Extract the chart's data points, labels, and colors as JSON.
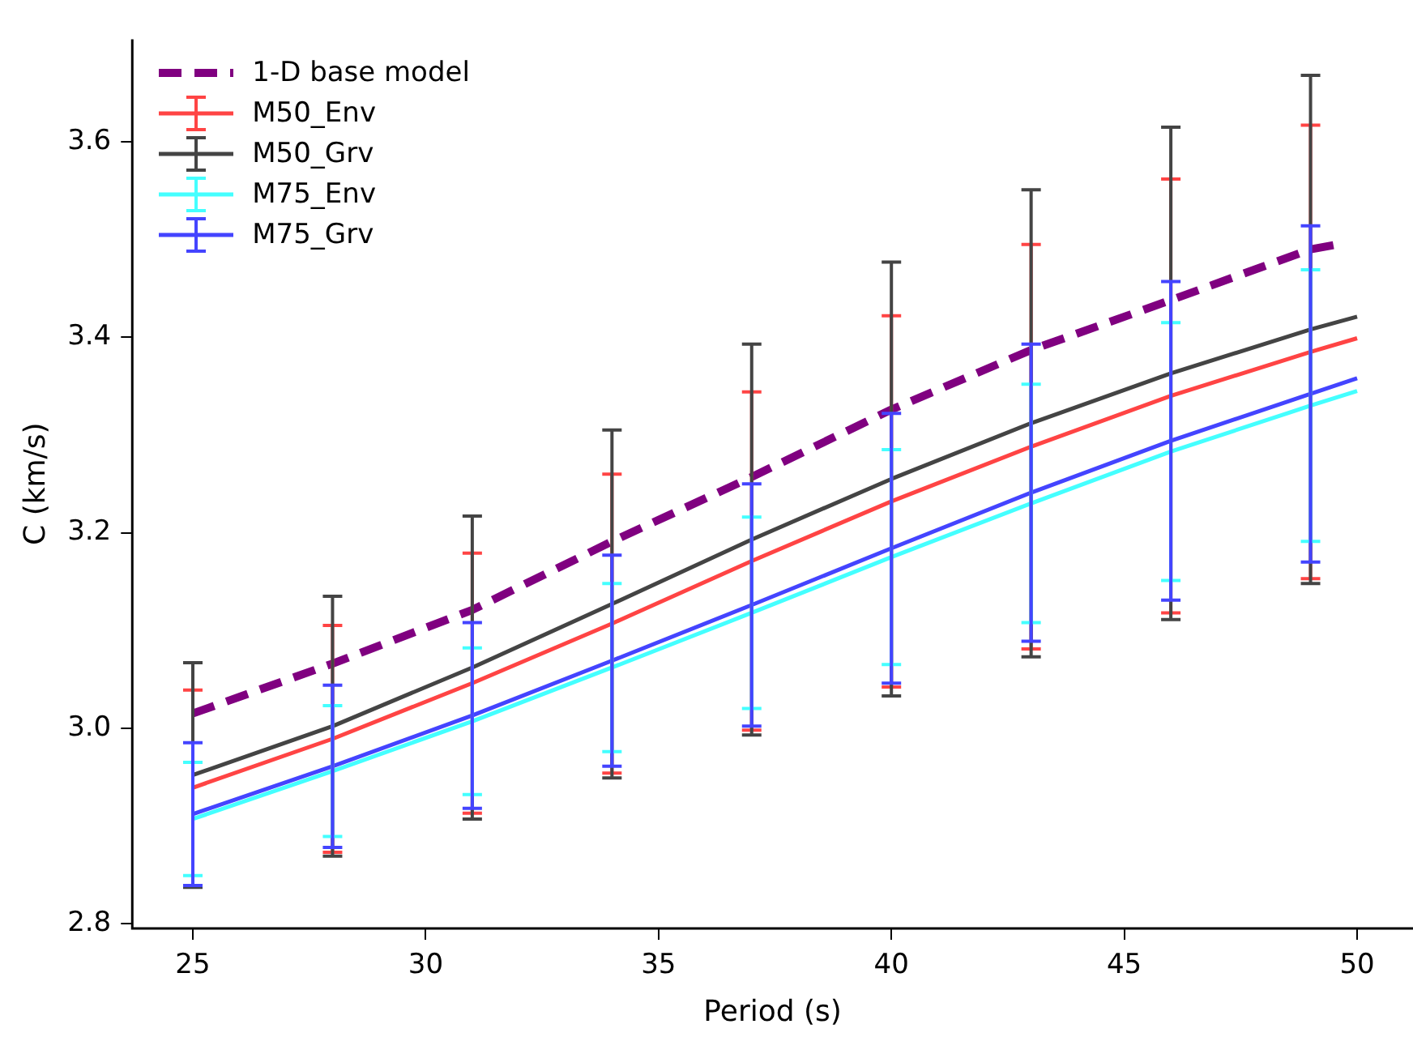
{
  "chart_data": {
    "type": "line",
    "xlabel": "Period (s)",
    "ylabel": "C (km/s)",
    "xlim": [
      23.7,
      51.2
    ],
    "xticks": [
      25,
      30,
      35,
      40,
      45,
      50
    ],
    "ylim": [
      2.795,
      3.705
    ],
    "yticks": [
      2.8,
      {
        "value": 3.0,
        "label": "3.0"
      },
      3.2,
      3.4,
      3.6
    ],
    "grid": false,
    "legend": "top left",
    "marker": "none",
    "series": [
      {
        "name": "1-D base model",
        "color": "#800080",
        "line_style": "dashed",
        "x": [
          25,
          28,
          31,
          34,
          37,
          40,
          43,
          46,
          49,
          49.7
        ],
        "values": [
          3.015,
          3.066,
          3.121,
          3.191,
          3.257,
          3.326,
          3.387,
          3.438,
          3.49,
          3.496
        ]
      },
      {
        "name": "M50_Env",
        "color": "#ff4444",
        "x": [
          25,
          28,
          31,
          34,
          37,
          40,
          43,
          46,
          49,
          50
        ],
        "values": [
          2.939,
          2.989,
          3.046,
          3.107,
          3.171,
          3.232,
          3.288,
          3.34,
          3.385,
          3.399
        ],
        "errors": [
          0.1,
          0.116,
          0.133,
          0.153,
          0.173,
          0.19,
          0.207,
          0.222,
          0.232,
          null
        ]
      },
      {
        "name": "M50_Grv",
        "color": "#444444",
        "x": [
          25,
          28,
          31,
          34,
          37,
          40,
          43,
          46,
          49,
          50
        ],
        "values": [
          2.952,
          3.002,
          3.062,
          3.127,
          3.193,
          3.255,
          3.312,
          3.363,
          3.408,
          3.421
        ],
        "errors": [
          0.115,
          0.133,
          0.155,
          0.178,
          0.2,
          0.222,
          0.239,
          0.252,
          0.26,
          null
        ]
      },
      {
        "name": "M75_Env",
        "color": "#44ffff",
        "x": [
          25,
          28,
          31,
          34,
          37,
          40,
          43,
          46,
          49,
          50
        ],
        "values": [
          2.907,
          2.956,
          3.007,
          3.062,
          3.118,
          3.175,
          3.23,
          3.283,
          3.33,
          3.345
        ],
        "errors": [
          0.058,
          0.067,
          0.075,
          0.086,
          0.098,
          0.11,
          0.122,
          0.132,
          0.139,
          null
        ]
      },
      {
        "name": "M75_Grv",
        "color": "#4444ff",
        "x": [
          25,
          28,
          31,
          34,
          37,
          40,
          43,
          46,
          49,
          50
        ],
        "values": [
          2.912,
          2.961,
          3.013,
          3.069,
          3.126,
          3.184,
          3.241,
          3.294,
          3.342,
          3.358
        ],
        "errors": [
          0.073,
          0.083,
          0.095,
          0.108,
          0.124,
          0.138,
          0.152,
          0.163,
          0.172,
          null
        ]
      }
    ]
  }
}
